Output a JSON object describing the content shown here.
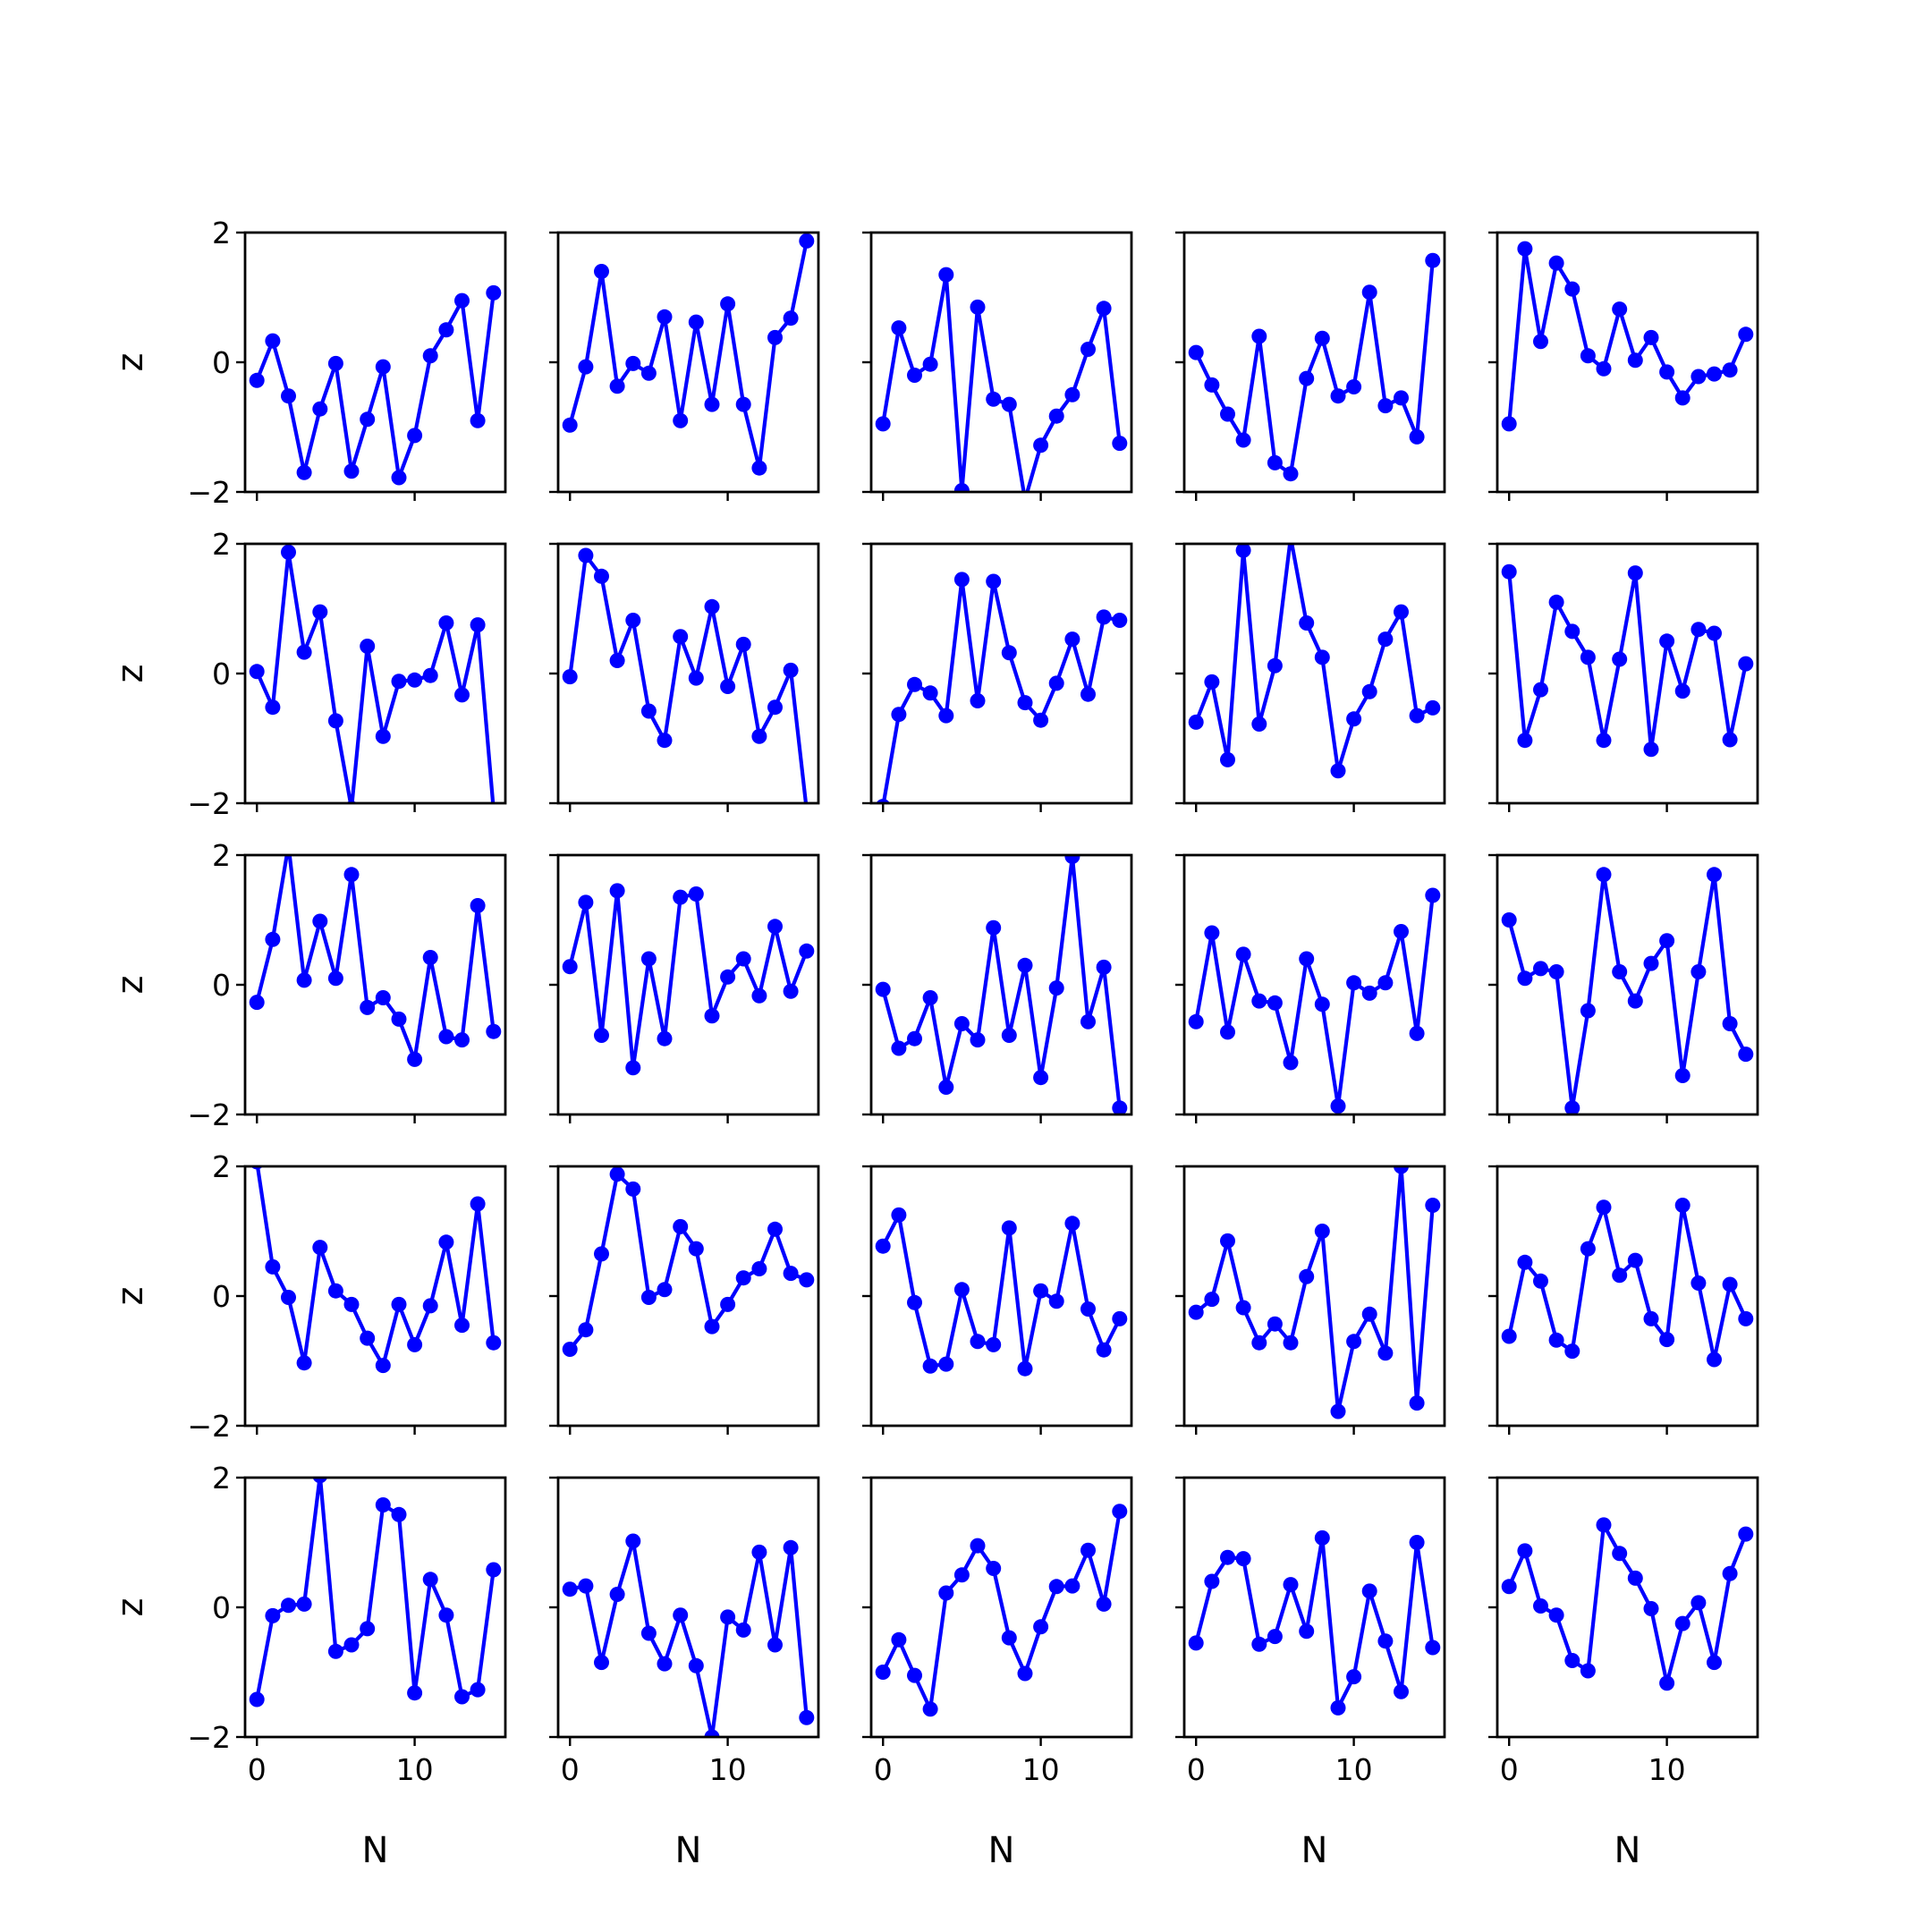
{
  "chart_data": {
    "type": "line",
    "layout": "5x5 grid of subplots",
    "xlabel": "N",
    "ylabel": "z",
    "xlim": [
      -0.75,
      15.75
    ],
    "ylim": [
      -2,
      2
    ],
    "x_ticks": [
      0,
      10
    ],
    "y_ticks": [
      -2,
      0,
      2
    ],
    "x": [
      0,
      1,
      2,
      3,
      4,
      5,
      6,
      7,
      8,
      9,
      10,
      11,
      12,
      13,
      14,
      15
    ],
    "line_color": "#0000ff",
    "panels": [
      [
        -0.28,
        0.33,
        -0.52,
        -1.7,
        -0.72,
        -0.02,
        -1.68,
        -0.88,
        -0.07,
        -1.78,
        -1.13,
        0.1,
        0.5,
        0.95,
        -0.9,
        1.07
      ],
      [
        -0.97,
        -0.07,
        1.4,
        -0.37,
        -0.02,
        -0.17,
        0.7,
        -0.9,
        0.62,
        -0.65,
        0.9,
        -0.65,
        -1.63,
        0.38,
        0.68,
        1.87
      ],
      [
        -0.95,
        0.53,
        -0.2,
        -0.03,
        1.35,
        -1.98,
        0.85,
        -0.57,
        -0.65,
        -2.12,
        -1.28,
        -0.83,
        -0.5,
        0.2,
        0.83,
        -1.25
      ],
      [
        0.15,
        -0.35,
        -0.8,
        -1.2,
        0.4,
        -1.55,
        -1.72,
        -0.25,
        0.37,
        -0.52,
        -0.38,
        1.08,
        -0.67,
        -0.55,
        -1.15,
        1.57
      ],
      [
        -0.95,
        1.75,
        0.32,
        1.53,
        1.13,
        0.1,
        -0.1,
        0.82,
        0.03,
        0.38,
        -0.15,
        -0.55,
        -0.22,
        -0.18,
        -0.12,
        0.43
      ],
      [
        0.03,
        -0.52,
        1.87,
        0.33,
        0.95,
        -0.73,
        -2.08,
        0.42,
        -0.97,
        -0.12,
        -0.1,
        -0.03,
        0.78,
        -0.33,
        0.75,
        -2.1
      ],
      [
        -0.05,
        1.82,
        1.5,
        0.2,
        0.82,
        -0.58,
        -1.03,
        0.57,
        -0.07,
        1.03,
        -0.2,
        0.45,
        -0.97,
        -0.52,
        0.05,
        -2.1
      ],
      [
        -2.05,
        -0.63,
        -0.17,
        -0.3,
        -0.65,
        1.45,
        -0.42,
        1.42,
        0.32,
        -0.45,
        -0.72,
        -0.15,
        0.53,
        -0.32,
        0.87,
        0.82
      ],
      [
        -0.75,
        -0.13,
        -1.33,
        1.9,
        -0.78,
        0.12,
        2.1,
        0.78,
        0.25,
        -1.5,
        -0.7,
        -0.28,
        0.53,
        0.95,
        -0.65,
        -0.53
      ],
      [
        1.57,
        -1.03,
        -0.25,
        1.1,
        0.65,
        0.25,
        -1.03,
        0.22,
        1.55,
        -1.17,
        0.5,
        -0.27,
        0.68,
        0.62,
        -1.02,
        0.15
      ],
      [
        -0.27,
        0.7,
        2.15,
        0.07,
        0.98,
        0.1,
        1.7,
        -0.35,
        -0.2,
        -0.53,
        -1.15,
        0.42,
        -0.8,
        -0.85,
        1.22,
        -0.72
      ],
      [
        0.28,
        1.27,
        -0.78,
        1.45,
        -1.28,
        0.4,
        -0.83,
        1.35,
        1.4,
        -0.48,
        0.12,
        0.4,
        -0.17,
        0.9,
        -0.1,
        0.52
      ],
      [
        -0.07,
        -0.98,
        -0.83,
        -0.2,
        -1.58,
        -0.6,
        -0.85,
        0.88,
        -0.78,
        0.3,
        -1.43,
        -0.05,
        1.98,
        -0.57,
        0.27,
        -1.9
      ],
      [
        -0.57,
        0.8,
        -0.73,
        0.47,
        -0.25,
        -0.28,
        -1.2,
        0.4,
        -0.3,
        -1.87,
        0.03,
        -0.13,
        0.03,
        0.82,
        -0.75,
        1.38
      ],
      [
        1.0,
        0.1,
        0.25,
        0.2,
        -1.9,
        -0.4,
        1.7,
        0.2,
        -0.25,
        0.33,
        0.68,
        -1.4,
        0.2,
        1.7,
        -0.6,
        -1.07
      ],
      [
        2.07,
        0.45,
        -0.02,
        -1.03,
        0.75,
        0.08,
        -0.13,
        -0.65,
        -1.07,
        -0.13,
        -0.75,
        -0.15,
        0.83,
        -0.45,
        1.42,
        -0.72
      ],
      [
        -0.82,
        -0.52,
        0.65,
        1.88,
        1.65,
        -0.02,
        0.1,
        1.07,
        0.73,
        -0.47,
        -0.13,
        0.28,
        0.42,
        1.03,
        0.35,
        0.25
      ],
      [
        0.77,
        1.25,
        -0.1,
        -1.08,
        -1.05,
        0.1,
        -0.7,
        -0.75,
        1.05,
        -1.12,
        0.08,
        -0.08,
        1.12,
        -0.2,
        -0.83,
        -0.35
      ],
      [
        -0.25,
        -0.05,
        0.85,
        -0.18,
        -0.72,
        -0.43,
        -0.72,
        0.3,
        1.0,
        -1.78,
        -0.7,
        -0.28,
        -0.88,
        2.0,
        -1.65,
        1.4
      ],
      [
        -0.62,
        0.52,
        0.23,
        -0.68,
        -0.85,
        0.73,
        1.37,
        0.32,
        0.55,
        -0.35,
        -0.67,
        1.4,
        0.2,
        -0.98,
        0.18,
        -0.35
      ],
      [
        -1.42,
        -0.13,
        0.03,
        0.05,
        2.03,
        -0.68,
        -0.58,
        -0.33,
        1.58,
        1.43,
        -1.32,
        0.43,
        -0.12,
        -1.38,
        -1.27,
        0.58
      ],
      [
        0.28,
        0.33,
        -0.85,
        0.2,
        1.02,
        -0.4,
        -0.87,
        -0.12,
        -0.9,
        -2.0,
        -0.15,
        -0.35,
        0.85,
        -0.58,
        0.92,
        -1.7
      ],
      [
        -1.0,
        -0.5,
        -1.05,
        -1.57,
        0.22,
        0.5,
        0.95,
        0.6,
        -0.47,
        -1.02,
        -0.3,
        0.32,
        0.33,
        0.88,
        0.05,
        1.48
      ],
      [
        -0.55,
        0.4,
        0.77,
        0.75,
        -0.57,
        -0.45,
        0.35,
        -0.37,
        1.07,
        -1.55,
        -1.07,
        0.25,
        -0.52,
        -1.3,
        1.0,
        -0.62
      ],
      [
        0.32,
        0.87,
        0.02,
        -0.12,
        -0.82,
        -0.98,
        1.27,
        0.83,
        0.45,
        -0.02,
        -1.17,
        -0.25,
        0.07,
        -0.85,
        0.52,
        1.13
      ]
    ]
  }
}
